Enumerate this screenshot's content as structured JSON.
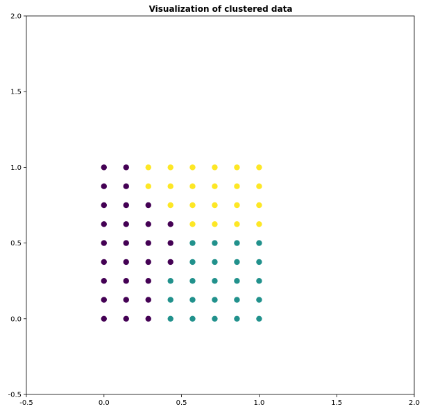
{
  "chart_data": {
    "type": "scatter",
    "title": "Visualization of clustered data",
    "xlabel": "",
    "ylabel": "",
    "xlim": [
      -0.5,
      2.0
    ],
    "ylim": [
      -0.5,
      2.0
    ],
    "grid": false,
    "legend": "none",
    "xticks": [
      "-0.5",
      "0.0",
      "0.5",
      "1.0",
      "1.5",
      "2.0"
    ],
    "yticks": [
      "-0.5",
      "0.0",
      "0.5",
      "1.0",
      "1.5",
      "2.0"
    ],
    "cluster_colors": [
      "#440154",
      "#21918c",
      "#fde725"
    ],
    "series": [
      {
        "cluster": 0,
        "color": "#440154",
        "points": [
          [
            0.0,
            0.0
          ],
          [
            0.0,
            0.125
          ],
          [
            0.0,
            0.25
          ],
          [
            0.0,
            0.375
          ],
          [
            0.0,
            0.5
          ],
          [
            0.0,
            0.625
          ],
          [
            0.0,
            0.75
          ],
          [
            0.0,
            0.875
          ],
          [
            0.0,
            1.0
          ],
          [
            0.143,
            0.0
          ],
          [
            0.143,
            0.125
          ],
          [
            0.143,
            0.25
          ],
          [
            0.143,
            0.375
          ],
          [
            0.143,
            0.5
          ],
          [
            0.143,
            0.625
          ],
          [
            0.143,
            0.75
          ],
          [
            0.143,
            0.875
          ],
          [
            0.143,
            1.0
          ],
          [
            0.286,
            0.0
          ],
          [
            0.286,
            0.125
          ],
          [
            0.286,
            0.25
          ],
          [
            0.286,
            0.375
          ],
          [
            0.286,
            0.5
          ],
          [
            0.286,
            0.625
          ],
          [
            0.286,
            0.75
          ],
          [
            0.429,
            0.375
          ],
          [
            0.429,
            0.5
          ],
          [
            0.429,
            0.625
          ]
        ]
      },
      {
        "cluster": 1,
        "color": "#21918c",
        "points": [
          [
            0.429,
            0.0
          ],
          [
            0.429,
            0.125
          ],
          [
            0.429,
            0.25
          ],
          [
            0.571,
            0.0
          ],
          [
            0.571,
            0.125
          ],
          [
            0.571,
            0.25
          ],
          [
            0.571,
            0.375
          ],
          [
            0.571,
            0.5
          ],
          [
            0.714,
            0.0
          ],
          [
            0.714,
            0.125
          ],
          [
            0.714,
            0.25
          ],
          [
            0.714,
            0.375
          ],
          [
            0.714,
            0.5
          ],
          [
            0.857,
            0.0
          ],
          [
            0.857,
            0.125
          ],
          [
            0.857,
            0.25
          ],
          [
            0.857,
            0.375
          ],
          [
            0.857,
            0.5
          ],
          [
            1.0,
            0.0
          ],
          [
            1.0,
            0.125
          ],
          [
            1.0,
            0.25
          ],
          [
            1.0,
            0.375
          ],
          [
            1.0,
            0.5
          ]
        ]
      },
      {
        "cluster": 2,
        "color": "#fde725",
        "points": [
          [
            0.286,
            0.875
          ],
          [
            0.286,
            1.0
          ],
          [
            0.429,
            0.75
          ],
          [
            0.429,
            0.875
          ],
          [
            0.429,
            1.0
          ],
          [
            0.571,
            0.625
          ],
          [
            0.571,
            0.75
          ],
          [
            0.571,
            0.875
          ],
          [
            0.571,
            1.0
          ],
          [
            0.714,
            0.625
          ],
          [
            0.714,
            0.75
          ],
          [
            0.714,
            0.875
          ],
          [
            0.714,
            1.0
          ],
          [
            0.857,
            0.625
          ],
          [
            0.857,
            0.75
          ],
          [
            0.857,
            0.875
          ],
          [
            0.857,
            1.0
          ],
          [
            1.0,
            0.625
          ],
          [
            1.0,
            0.75
          ],
          [
            1.0,
            0.875
          ],
          [
            1.0,
            1.0
          ]
        ]
      }
    ]
  }
}
